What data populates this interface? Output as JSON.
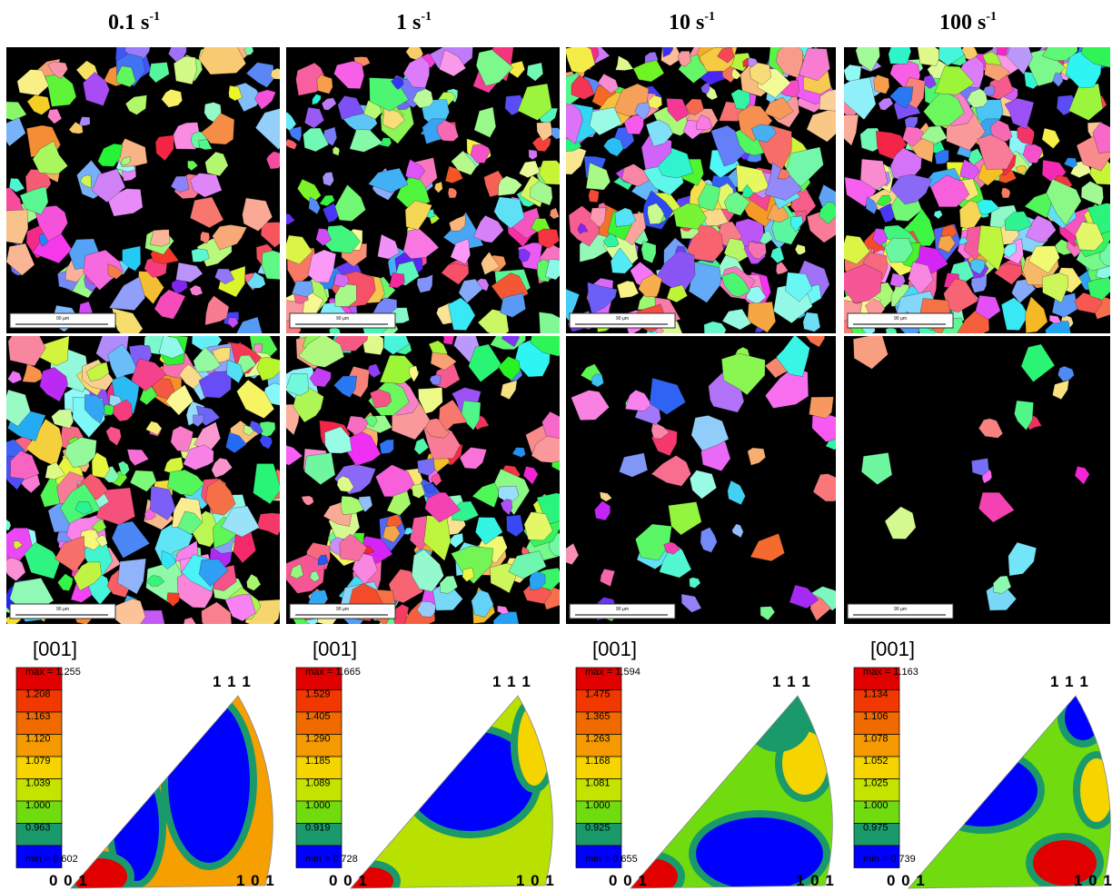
{
  "columns": [
    {
      "rate": "0.1 s",
      "exp": "-1"
    },
    {
      "rate": "1 s",
      "exp": "-1"
    },
    {
      "rate": "10 s",
      "exp": "-1"
    },
    {
      "rate": "100 s",
      "exp": "-1"
    }
  ],
  "scale_bar": "90 µm",
  "direction": "[001]",
  "corners": {
    "top": "1 1 1",
    "left": "0 0 1",
    "right": "1 0 1"
  },
  "ipf": [
    {
      "max": "max = 1.255",
      "levels": [
        "1.208",
        "1.163",
        "1.120",
        "1.079",
        "1.039",
        "1.000",
        "0.963"
      ],
      "min": "min = 0.602"
    },
    {
      "max": "max = 1.665",
      "levels": [
        "1.529",
        "1.405",
        "1.290",
        "1.185",
        "1.089",
        "1.000",
        "0.919"
      ],
      "min": "min = 0.728"
    },
    {
      "max": "max = 1.594",
      "levels": [
        "1.475",
        "1.365",
        "1.263",
        "1.168",
        "1.081",
        "1.000",
        "0.925"
      ],
      "min": "min = 0.655"
    },
    {
      "max": "max = 1.163",
      "levels": [
        "1.134",
        "1.106",
        "1.078",
        "1.052",
        "1.025",
        "1.000",
        "0.975"
      ],
      "min": "min = 0.739"
    }
  ]
}
